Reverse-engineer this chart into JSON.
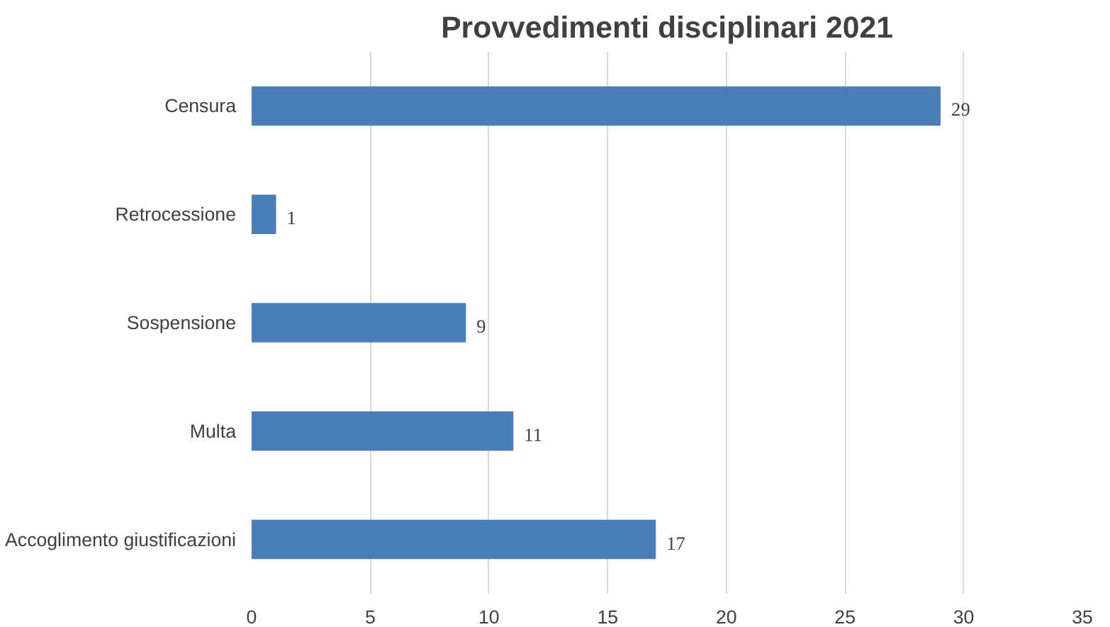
{
  "chart_data": {
    "type": "bar",
    "title": "Provvedimenti disciplinari 2021",
    "orientation": "horizontal",
    "categories": [
      "Censura",
      "Retrocessione",
      "Sospensione",
      "Multa",
      "Accoglimento giustificazioni"
    ],
    "values": [
      29,
      1,
      9,
      11,
      17
    ],
    "color": "#4a7ebb",
    "xlim": [
      0,
      35
    ],
    "xticks": [
      0,
      5,
      10,
      15,
      20,
      25,
      30,
      35
    ],
    "grid": "x",
    "data_labels": true
  }
}
